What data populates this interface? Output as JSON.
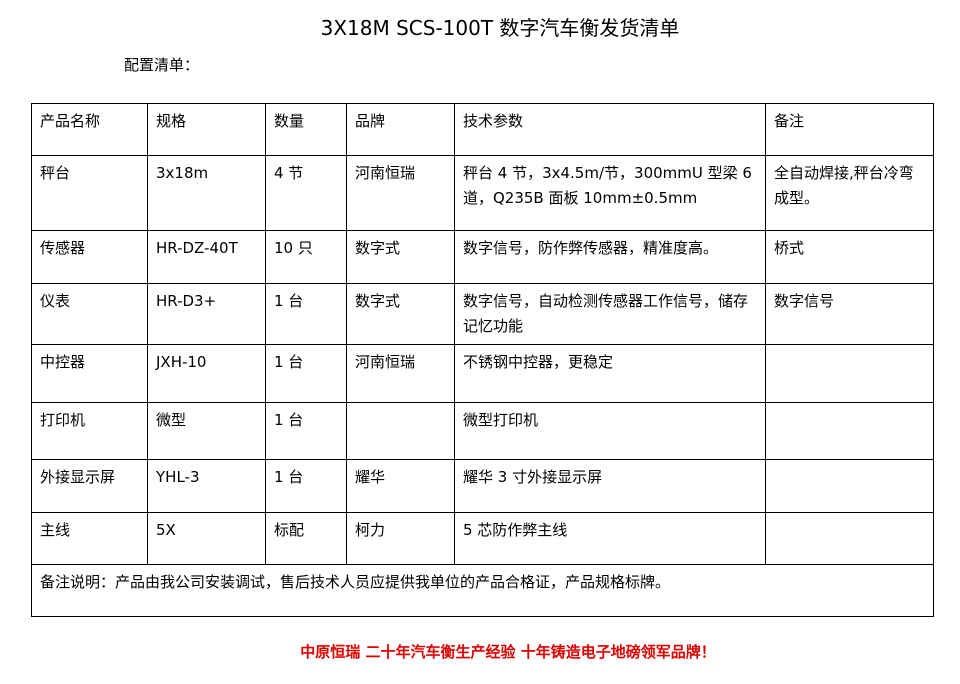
{
  "title": "3X18M SCS-100T 数字汽车衡发货清单",
  "subtitle": "配置清单：",
  "headers": [
    "产品名称",
    "规格",
    "数量",
    "品牌",
    "技术参数",
    "备注"
  ],
  "rows": [
    [
      "秤台",
      "3x18m",
      "4 节",
      "河南恒瑞",
      "秤台 4 节，3x4.5m/节，300mmU 型梁 6 道，Q235B 面板 10mm±0.5mm",
      "全自动焊接,秤台冷弯成型。"
    ],
    [
      "传感器",
      "HR-DZ-40T",
      "10 只",
      "数字式",
      "数字信号，防作弊传感器，精准度高。",
      "桥式"
    ],
    [
      "仪表",
      "HR-D3+",
      "1 台",
      "数字式",
      "数字信号，自动检测传感器工作信号，储存记忆功能",
      "数字信号"
    ],
    [
      "中控器",
      "JXH-10",
      "1 台",
      "河南恒瑞",
      "不锈钢中控器，更稳定",
      ""
    ],
    [
      "打印机",
      "微型",
      "1 台",
      "",
      "微型打印机",
      ""
    ],
    [
      "外接显示屏",
      "YHL-3",
      "1 台",
      "耀华",
      "耀华 3 寸外接显示屏",
      ""
    ],
    [
      "主线",
      "5X",
      "标配",
      "柯力",
      "5 芯防作弊主线",
      ""
    ]
  ],
  "note": "备注说明：产品由我公司安装调试，售后技术人员应提供我单位的产品合格证，产品规格标牌。",
  "footer": "中原恒瑞  二十年汽车衡生产经验  十年铸造电子地磅领军品牌！"
}
